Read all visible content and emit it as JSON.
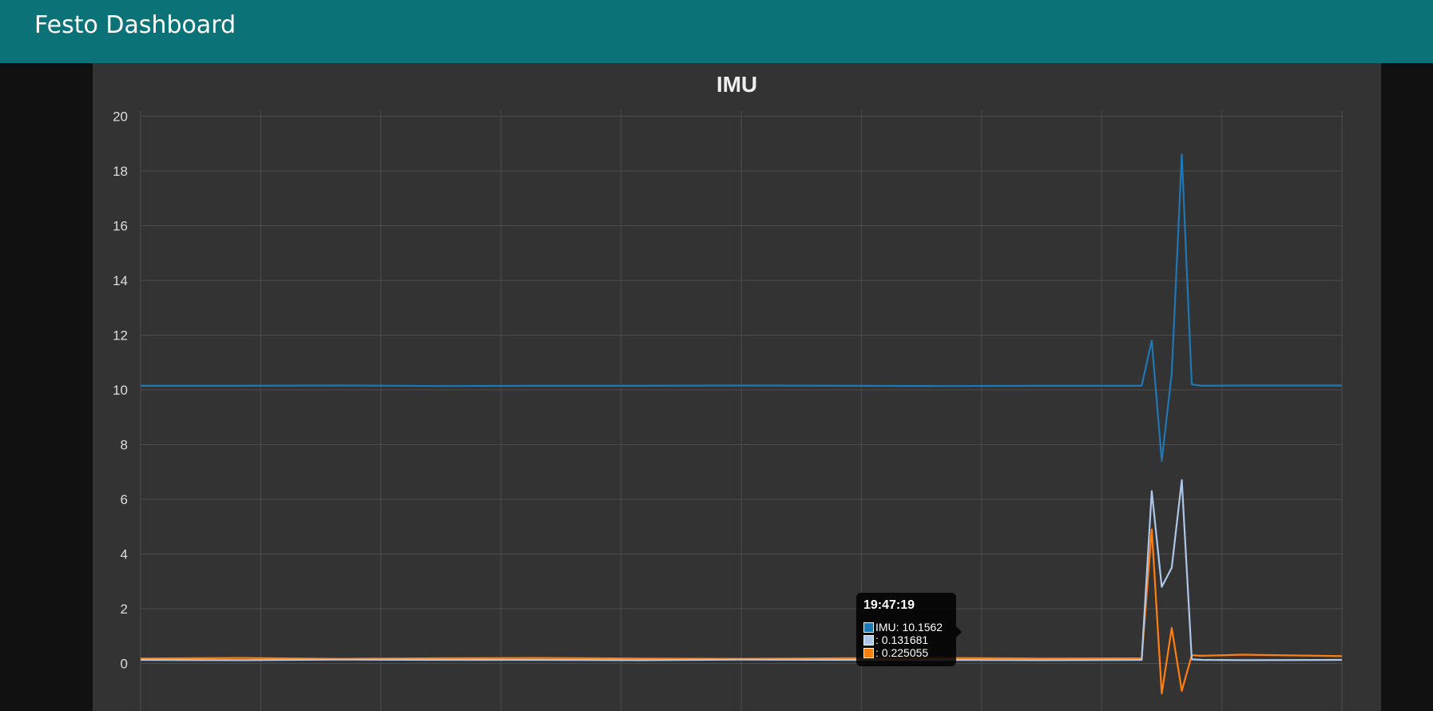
{
  "app": {
    "title": "Festo Dashboard"
  },
  "colors": {
    "header": "#0b7377",
    "panel": "#333333",
    "series_imu": "#1f77b4",
    "series_light_blue": "#aec7e8",
    "series_orange": "#ff7f0e"
  },
  "chart_data": {
    "type": "line",
    "title": "IMU",
    "xlabel": "",
    "ylabel": "",
    "ylim": [
      -1.7,
      20.2
    ],
    "yticks": [
      0,
      2,
      4,
      6,
      8,
      10,
      12,
      14,
      16,
      18,
      20
    ],
    "grid": true,
    "legend": "none",
    "x": [
      0,
      50,
      100,
      150,
      200,
      250,
      300,
      350,
      400,
      450,
      500,
      505,
      510,
      515,
      520,
      525,
      530,
      550,
      600
    ],
    "series": [
      {
        "name": "IMU",
        "values": [
          10.15,
          10.15,
          10.16,
          10.14,
          10.15,
          10.15,
          10.16,
          10.15,
          10.14,
          10.15,
          10.15,
          11.8,
          7.4,
          10.6,
          18.6,
          10.2,
          10.15,
          10.16,
          10.16
        ]
      },
      {
        "name": "",
        "values": [
          0.13,
          0.12,
          0.14,
          0.13,
          0.13,
          0.12,
          0.14,
          0.13,
          0.13,
          0.12,
          0.13,
          6.3,
          2.8,
          3.5,
          6.7,
          0.15,
          0.13,
          0.12,
          0.13
        ]
      },
      {
        "name": "",
        "values": [
          0.18,
          0.2,
          0.17,
          0.19,
          0.2,
          0.18,
          0.17,
          0.19,
          0.2,
          0.18,
          0.19,
          4.9,
          -1.1,
          1.3,
          -1.0,
          0.3,
          0.28,
          0.32,
          0.27
        ]
      }
    ]
  },
  "tooltip": {
    "time": "19:47:19",
    "rows": [
      {
        "label": "IMU: 10.1562",
        "color": "#1f77b4"
      },
      {
        "label": ": 0.131681",
        "color": "#aec7e8"
      },
      {
        "label": ": 0.225055",
        "color": "#ff7f0e"
      }
    ]
  }
}
